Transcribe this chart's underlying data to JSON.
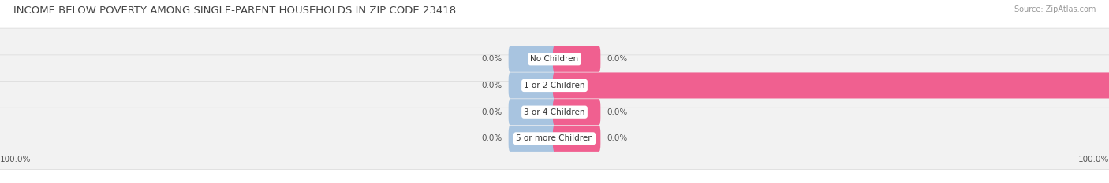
{
  "title": "INCOME BELOW POVERTY AMONG SINGLE-PARENT HOUSEHOLDS IN ZIP CODE 23418",
  "source": "Source: ZipAtlas.com",
  "categories": [
    "No Children",
    "1 or 2 Children",
    "3 or 4 Children",
    "5 or more Children"
  ],
  "single_father": [
    0.0,
    0.0,
    0.0,
    0.0
  ],
  "single_mother": [
    0.0,
    100.0,
    0.0,
    0.0
  ],
  "father_color": "#a8c4e0",
  "mother_color": "#f06090",
  "row_bg_color": "#f2f2f2",
  "row_edge_color": "#dddddd",
  "xlim_left": -100,
  "xlim_right": 100,
  "min_bar_width": 8,
  "title_fontsize": 9.5,
  "source_fontsize": 7,
  "label_fontsize": 7.5,
  "category_fontsize": 7.5,
  "legend_fontsize": 8,
  "axis_label_left": "100.0%",
  "axis_label_right": "100.0%"
}
